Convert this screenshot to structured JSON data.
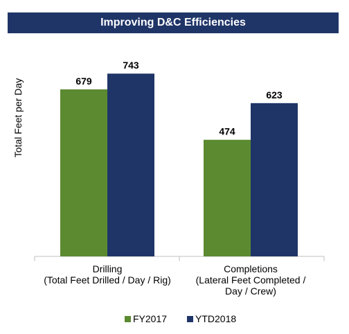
{
  "title": "Improving D&C Efficiencies",
  "chart_data": {
    "type": "bar",
    "ylabel": "Total Feet per Day",
    "categories": [
      [
        "Drilling",
        "(Total Feet Drilled / Day / Rig)"
      ],
      [
        "Completions",
        "(Lateral Feet Completed /",
        "Day / Crew)"
      ]
    ],
    "series": [
      {
        "name": "FY2017",
        "values": [
          679,
          474
        ],
        "color": "#5b8a31"
      },
      {
        "name": "YTD2018",
        "values": [
          743,
          623
        ],
        "color": "#1f3568"
      }
    ],
    "ylim": [
      0,
      800
    ],
    "grid": false,
    "show_data_labels": true,
    "legend_position": "bottom"
  }
}
